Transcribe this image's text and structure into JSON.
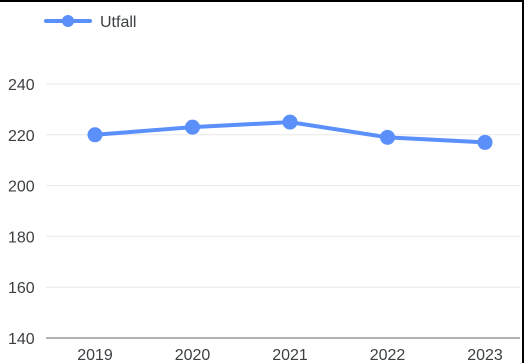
{
  "chart_data": {
    "type": "line",
    "categories": [
      "2019",
      "2020",
      "2021",
      "2022",
      "2023"
    ],
    "series": [
      {
        "name": "Utfall",
        "values": [
          220,
          223,
          225,
          219,
          217
        ]
      }
    ],
    "ylim": [
      140,
      240
    ],
    "yticks": [
      240,
      220,
      200,
      180,
      160,
      140
    ],
    "grid": true,
    "legend": "top-left",
    "color": "#5b8ff9"
  }
}
